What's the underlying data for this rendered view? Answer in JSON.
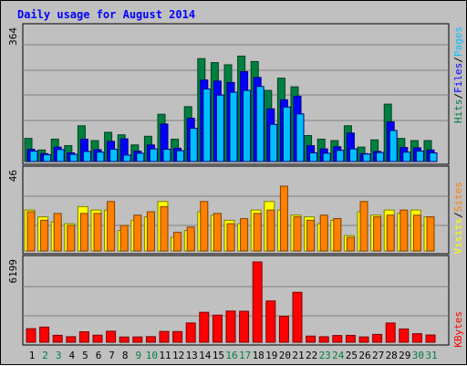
{
  "chart_data": {
    "type": "bar",
    "title": "Daily usage for August 2014",
    "categories": [
      "1",
      "2",
      "3",
      "4",
      "5",
      "6",
      "7",
      "8",
      "9",
      "10",
      "11",
      "12",
      "13",
      "14",
      "15",
      "16",
      "17",
      "18",
      "19",
      "20",
      "21",
      "22",
      "23",
      "24",
      "25",
      "26",
      "27",
      "28",
      "29",
      "30",
      "31"
    ],
    "weekend_days": [
      "2",
      "3",
      "9",
      "10",
      "16",
      "17",
      "23",
      "24",
      "30",
      "31"
    ],
    "panels": [
      {
        "id": "hits-files-pages",
        "max_label": "364",
        "ylim": [
          0,
          364
        ],
        "series": [
          {
            "name": "Hits",
            "color": "#008040",
            "values": [
              64,
              32,
              62,
              44,
              99,
              58,
              81,
              74,
              46,
              70,
              131,
              62,
              152,
              285,
              274,
              268,
              292,
              277,
              197,
              231,
              207,
              72,
              62,
              58,
              99,
              40,
              60,
              159,
              64,
              58,
              58
            ]
          },
          {
            "name": "Files",
            "color": "#0000ff",
            "values": [
              34,
              22,
              40,
              24,
              62,
              33,
              56,
              63,
              29,
              46,
              104,
              37,
              120,
              226,
              223,
              219,
              249,
              233,
              146,
              171,
              181,
              44,
              35,
              41,
              79,
              22,
              28,
              110,
              39,
              38,
              32
            ]
          },
          {
            "name": "Pages",
            "color": "#00bfff",
            "values": [
              29,
              19,
              33,
              20,
              28,
              26,
              34,
              18,
              23,
              35,
              34,
              30,
              92,
              201,
              184,
              192,
              197,
              208,
              103,
              151,
              132,
              24,
              23,
              31,
              35,
              21,
              25,
              86,
              26,
              29,
              24
            ]
          }
        ]
      },
      {
        "id": "visits-sites",
        "max_label": "46",
        "ylim": [
          0,
          46
        ],
        "series": [
          {
            "name": "Visits",
            "color": "#ffff00",
            "values": [
              24,
              20,
              17,
              16,
              26,
              24,
              24,
              12,
              18,
              20,
              29,
              8,
              12,
              23,
              21,
              18,
              16,
              24,
              29,
              24,
              21,
              20,
              16,
              18,
              9,
              23,
              21,
              24,
              22,
              24,
              20
            ]
          },
          {
            "name": "Sites",
            "color": "#ff8000",
            "values": [
              23,
              18,
              22,
              15,
              22,
              22,
              29,
              15,
              21,
              23,
              26,
              11,
              14,
              29,
              22,
              16,
              19,
              22,
              24,
              38,
              20,
              18,
              21,
              19,
              8,
              29,
              20,
              21,
              24,
              21,
              20
            ]
          }
        ]
      },
      {
        "id": "kbytes",
        "max_label": "6199",
        "ylim": [
          0,
          6199
        ],
        "series": [
          {
            "name": "KBytes",
            "color": "#ff0000",
            "values": [
              1048,
              1173,
              538,
              430,
              810,
              548,
              852,
              405,
              412,
              435,
              837,
              827,
              1489,
              2313,
              2094,
              2409,
              2395,
              6199,
              3188,
              2004,
              3858,
              477,
              428,
              521,
              534,
              411,
              605,
              1486,
              1026,
              660,
              561
            ]
          }
        ]
      }
    ],
    "right_labels": {
      "hits": "Hits",
      "files": "Files",
      "pages": "Pages",
      "visits": "Visits",
      "sites": "Sites",
      "kbytes": "KBytes",
      "separator": "/"
    },
    "grid": true
  },
  "colors": {
    "background": "#c0c0c0",
    "title": "#0000ff",
    "weekday_label": "#000000",
    "weekend_label": "#008040",
    "grid": "#808080"
  }
}
